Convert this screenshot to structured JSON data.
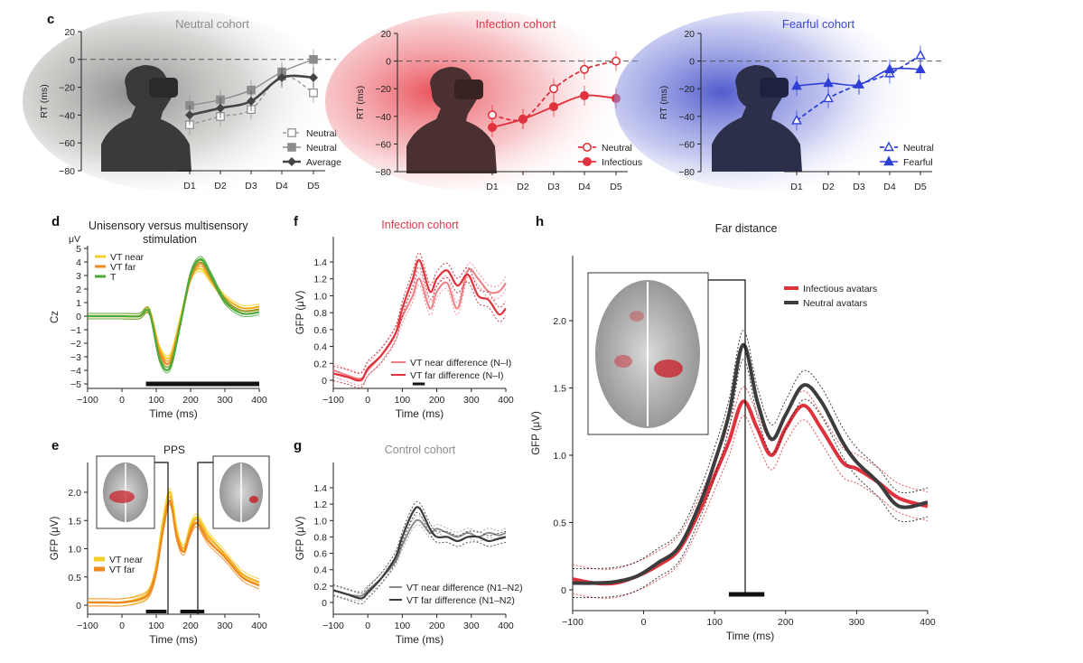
{
  "figure": {
    "panel_labels": {
      "c": "c",
      "d": "d",
      "e": "e",
      "f": "f",
      "g": "g",
      "h": "h"
    }
  },
  "colors": {
    "neutral_gray": "#8c8c8c",
    "average_dark": "#444444",
    "infection_red": "#e0323c",
    "infection_light": "#f07e84",
    "fearful_blue": "#2e3fd8",
    "vt_near_yellow": "#f4cf2a",
    "vt_far_orange": "#ee8a22",
    "t_green": "#4caa3a",
    "h_red": "#e0323c",
    "h_dark": "#3c3c3c",
    "title_gray": "#8c8c8c",
    "title_red": "#d93a4e",
    "title_blue": "#3d47d6"
  },
  "chart_data": [
    {
      "id": "c1",
      "type": "line",
      "title": "Neutral cohort",
      "ylabel": "RT (ms)",
      "ylim": [
        -80,
        20
      ],
      "yticks": [
        "20",
        "0",
        "−20",
        "−40",
        "−60",
        "−80"
      ],
      "categories": [
        "D1",
        "D2",
        "D3",
        "D4",
        "D5"
      ],
      "series": [
        {
          "name": "Neutral",
          "marker": "open-square",
          "values": [
            -47,
            -41,
            -36,
            -12,
            -24
          ]
        },
        {
          "name": "Neutral",
          "marker": "filled-square",
          "values": [
            -33,
            -29,
            -22,
            -9,
            0
          ]
        },
        {
          "name": "Average",
          "marker": "filled-diamond",
          "values": [
            -40,
            -35,
            -30,
            -13,
            -13
          ]
        }
      ]
    },
    {
      "id": "c2",
      "type": "line",
      "title": "Infection cohort",
      "ylabel": "RT (ms)",
      "ylim": [
        -80,
        20
      ],
      "yticks": [
        "20",
        "0",
        "−20",
        "−40",
        "−60",
        "−80"
      ],
      "categories": [
        "D1",
        "D2",
        "D3",
        "D4",
        "D5"
      ],
      "series": [
        {
          "name": "Neutral",
          "marker": "open-circle",
          "values": [
            -39,
            -42,
            -20,
            -6,
            0
          ]
        },
        {
          "name": "Infectious",
          "marker": "filled-circle",
          "values": [
            -48,
            -42,
            -33,
            -25,
            -27
          ]
        }
      ]
    },
    {
      "id": "c3",
      "type": "line",
      "title": "Fearful cohort",
      "ylabel": "RT (ms)",
      "ylim": [
        -80,
        20
      ],
      "yticks": [
        "20",
        "0",
        "−20",
        "−40",
        "−60",
        "−80"
      ],
      "categories": [
        "D1",
        "D2",
        "D3",
        "D4",
        "D5"
      ],
      "series": [
        {
          "name": "Neutral",
          "marker": "open-triangle",
          "values": [
            -43,
            -27,
            -17,
            -9,
            4
          ]
        },
        {
          "name": "Fearful",
          "marker": "filled-triangle",
          "values": [
            -18,
            -16,
            -17,
            -6,
            -6
          ]
        }
      ]
    },
    {
      "id": "d",
      "type": "line",
      "title": "Unisensory versus multisensory stimulation",
      "unit_label": "μV",
      "ylabel": "Cz",
      "xlabel": "Time (ms)",
      "xlim": [
        -100,
        400
      ],
      "ylim": [
        -5,
        5
      ],
      "xticks": [
        "−100",
        "0",
        "100",
        "200",
        "300",
        "400"
      ],
      "yticks": [
        "5",
        "4",
        "3",
        "2",
        "1",
        "0",
        "−1",
        "−2",
        "−3",
        "−4",
        "−5"
      ],
      "sig_bar": [
        70,
        400
      ],
      "series": [
        {
          "name": "VT near",
          "x": [
            -100,
            -50,
            0,
            50,
            80,
            110,
            140,
            170,
            200,
            230,
            260,
            300,
            350,
            400
          ],
          "y": [
            0,
            0,
            0,
            0,
            0.4,
            -2.4,
            -3.0,
            -0.2,
            2.8,
            3.5,
            2.6,
            1.4,
            0.6,
            0.7
          ]
        },
        {
          "name": "VT far",
          "x": [
            -100,
            -50,
            0,
            50,
            80,
            110,
            140,
            170,
            200,
            230,
            260,
            300,
            350,
            400
          ],
          "y": [
            0,
            0,
            0,
            0,
            0.3,
            -2.7,
            -3.4,
            -0.5,
            2.8,
            3.9,
            2.8,
            1.2,
            0.4,
            0.5
          ]
        },
        {
          "name": "T",
          "x": [
            -100,
            -50,
            0,
            50,
            80,
            110,
            140,
            170,
            200,
            230,
            260,
            300,
            350,
            400
          ],
          "y": [
            0,
            0,
            0,
            0,
            0.3,
            -3.2,
            -3.8,
            -0.6,
            3.1,
            4.2,
            3.0,
            1.1,
            0.2,
            0.3
          ]
        }
      ]
    },
    {
      "id": "e",
      "type": "line",
      "title": "PPS",
      "ylabel": "GFP (μV)",
      "xlabel": "Time (ms)",
      "xlim": [
        -100,
        400
      ],
      "ylim": [
        0,
        2.3
      ],
      "xticks": [
        "−100",
        "0",
        "100",
        "200",
        "300",
        "400"
      ],
      "yticks": [
        "0",
        "0.5",
        "1.0",
        "1.5",
        "2.0"
      ],
      "sig_bars": [
        [
          70,
          130
        ],
        [
          170,
          240
        ]
      ],
      "series": [
        {
          "name": "VT near",
          "x": [
            -100,
            -50,
            0,
            50,
            80,
            100,
            120,
            140,
            160,
            180,
            200,
            220,
            250,
            300,
            350,
            400
          ],
          "y": [
            0.05,
            0.05,
            0.05,
            0.12,
            0.25,
            0.7,
            1.5,
            2.0,
            1.3,
            1.0,
            1.4,
            1.55,
            1.25,
            0.9,
            0.55,
            0.4
          ]
        },
        {
          "name": "VT far",
          "x": [
            -100,
            -50,
            0,
            50,
            80,
            100,
            120,
            140,
            160,
            180,
            200,
            220,
            250,
            300,
            350,
            400
          ],
          "y": [
            0.05,
            0.05,
            0.05,
            0.1,
            0.22,
            0.6,
            1.35,
            1.85,
            1.2,
            0.95,
            1.3,
            1.45,
            1.15,
            0.85,
            0.5,
            0.35
          ]
        }
      ]
    },
    {
      "id": "f",
      "type": "line",
      "title": "Infection cohort",
      "ylabel": "GFP (μV)",
      "xlabel": "Time (ms)",
      "xlim": [
        -100,
        400
      ],
      "ylim": [
        -0.1,
        1.6
      ],
      "xticks": [
        "−100",
        "0",
        "100",
        "200",
        "300",
        "400"
      ],
      "yticks": [
        "0",
        "0.2",
        "0.4",
        "0.6",
        "0.8",
        "1.0",
        "1.2",
        "1.4"
      ],
      "sig_bar": [
        130,
        165
      ],
      "series": [
        {
          "name": "VT near difference (N–I)",
          "x": [
            -100,
            -60,
            -20,
            0,
            40,
            80,
            100,
            130,
            150,
            180,
            200,
            230,
            260,
            290,
            320,
            350,
            380,
            400
          ],
          "y": [
            0.12,
            0.06,
            0.02,
            0.12,
            0.3,
            0.55,
            0.75,
            1.0,
            1.2,
            0.85,
            1.05,
            1.15,
            0.85,
            1.3,
            1.2,
            1.05,
            1.05,
            1.15
          ]
        },
        {
          "name": "VT far difference (N–I)",
          "x": [
            -100,
            -60,
            -20,
            0,
            40,
            80,
            100,
            130,
            150,
            180,
            200,
            230,
            260,
            290,
            320,
            350,
            380,
            400
          ],
          "y": [
            0.08,
            0.04,
            0.0,
            0.14,
            0.3,
            0.55,
            0.85,
            1.2,
            1.42,
            1.05,
            1.2,
            1.3,
            1.12,
            1.25,
            1.0,
            0.95,
            0.78,
            0.85
          ]
        }
      ]
    },
    {
      "id": "g",
      "type": "line",
      "title": "Control cohort",
      "ylabel": "GFP (μV)",
      "xlabel": "Time (ms)",
      "xlim": [
        -100,
        400
      ],
      "ylim": [
        -0.1,
        1.6
      ],
      "xticks": [
        "−100",
        "0",
        "100",
        "200",
        "300",
        "400"
      ],
      "yticks": [
        "0",
        "0.2",
        "0.4",
        "0.6",
        "0.8",
        "1.0",
        "1.2",
        "1.4"
      ],
      "series": [
        {
          "name": "VT near difference (N1–N2)",
          "x": [
            -100,
            -60,
            -20,
            0,
            40,
            80,
            100,
            130,
            150,
            180,
            200,
            230,
            260,
            290,
            320,
            350,
            380,
            400
          ],
          "y": [
            0.15,
            0.1,
            0.08,
            0.15,
            0.3,
            0.5,
            0.7,
            0.95,
            1.0,
            0.85,
            0.9,
            0.85,
            0.8,
            0.85,
            0.8,
            0.85,
            0.82,
            0.85
          ]
        },
        {
          "name": "VT far difference (N1–N2)",
          "x": [
            -100,
            -60,
            -20,
            0,
            40,
            80,
            100,
            130,
            150,
            180,
            200,
            230,
            260,
            290,
            320,
            350,
            380,
            400
          ],
          "y": [
            0.15,
            0.1,
            0.05,
            0.12,
            0.3,
            0.55,
            0.8,
            1.1,
            1.15,
            0.9,
            0.8,
            0.8,
            0.75,
            0.8,
            0.8,
            0.75,
            0.78,
            0.8
          ]
        }
      ]
    },
    {
      "id": "h",
      "type": "line",
      "title": "Far distance",
      "ylabel": "GFP (μV)",
      "xlabel": "Time (ms)",
      "xlim": [
        -100,
        400
      ],
      "ylim": [
        -0.05,
        2.45
      ],
      "xticks": [
        "−100",
        "0",
        "100",
        "200",
        "300",
        "400"
      ],
      "yticks": [
        "0",
        "0.5",
        "1.0",
        "1.5",
        "2.0"
      ],
      "sig_bar": [
        120,
        170
      ],
      "series": [
        {
          "name": "Infectious avatars",
          "x": [
            -100,
            -70,
            -40,
            -10,
            20,
            50,
            80,
            100,
            120,
            140,
            160,
            180,
            200,
            225,
            250,
            280,
            300,
            330,
            360,
            400
          ],
          "y": [
            0.08,
            0.05,
            0.05,
            0.1,
            0.18,
            0.3,
            0.6,
            0.85,
            1.1,
            1.4,
            1.2,
            1.0,
            1.2,
            1.37,
            1.2,
            0.95,
            0.9,
            0.8,
            0.68,
            0.62
          ]
        },
        {
          "name": "Neutral avatars",
          "x": [
            -100,
            -70,
            -40,
            -10,
            20,
            50,
            80,
            100,
            120,
            140,
            160,
            180,
            200,
            225,
            250,
            280,
            300,
            330,
            360,
            400
          ],
          "y": [
            0.05,
            0.05,
            0.06,
            0.1,
            0.2,
            0.32,
            0.65,
            0.95,
            1.3,
            1.82,
            1.4,
            1.12,
            1.3,
            1.52,
            1.4,
            1.1,
            0.95,
            0.8,
            0.62,
            0.65
          ]
        }
      ]
    }
  ]
}
